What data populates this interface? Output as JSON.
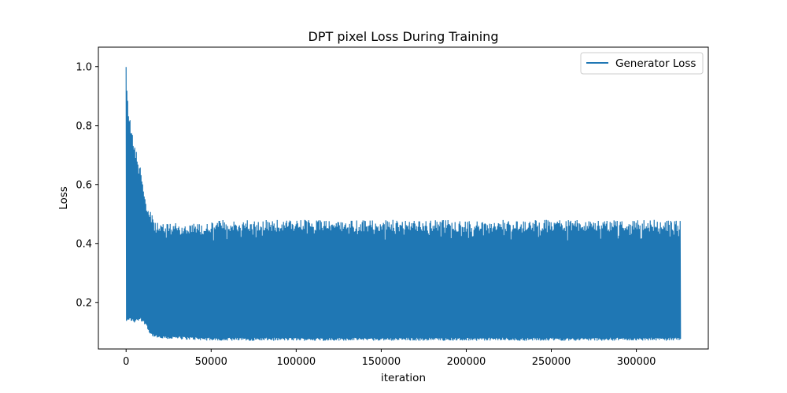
{
  "chart_data": {
    "type": "line",
    "title": "DPT pixel Loss During Training",
    "xlabel": "iteration",
    "ylabel": "Loss",
    "xlim": [
      -16300,
      342300
    ],
    "ylim": [
      0.042,
      1.066
    ],
    "xticks": [
      0,
      50000,
      100000,
      150000,
      200000,
      250000,
      300000
    ],
    "xtick_labels": [
      "0",
      "50000",
      "100000",
      "150000",
      "200000",
      "250000",
      "300000"
    ],
    "yticks": [
      0.2,
      0.4,
      0.6,
      0.8,
      1.0
    ],
    "ytick_labels": [
      "0.2",
      "0.4",
      "0.6",
      "0.8",
      "1.0"
    ],
    "grid": false,
    "legend_position": "top-right",
    "series": [
      {
        "name": "Generator Loss",
        "color": "#1f77b4",
        "x_range": [
          0,
          326000
        ],
        "upper_envelope": {
          "x": [
            0,
            1000,
            2000,
            3000,
            5000,
            7000,
            9000,
            10000,
            12000,
            14000,
            17000,
            20000,
            30000,
            50000,
            52000,
            100000,
            150000,
            200000,
            250000,
            300000,
            326000
          ],
          "y": [
            1.025,
            0.88,
            0.84,
            0.8,
            0.74,
            0.7,
            0.66,
            0.6,
            0.55,
            0.52,
            0.47,
            0.47,
            0.47,
            0.47,
            0.48,
            0.48,
            0.48,
            0.48,
            0.48,
            0.48,
            0.48
          ]
        },
        "lower_envelope": {
          "x": [
            0,
            2000,
            5000,
            8000,
            10000,
            12000,
            14000,
            17000,
            20000,
            30000,
            50000,
            100000,
            150000,
            200000,
            250000,
            300000,
            326000
          ],
          "y": [
            0.13,
            0.14,
            0.13,
            0.14,
            0.13,
            0.12,
            0.09,
            0.08,
            0.075,
            0.075,
            0.07,
            0.07,
            0.07,
            0.07,
            0.07,
            0.07,
            0.07
          ]
        }
      }
    ]
  }
}
